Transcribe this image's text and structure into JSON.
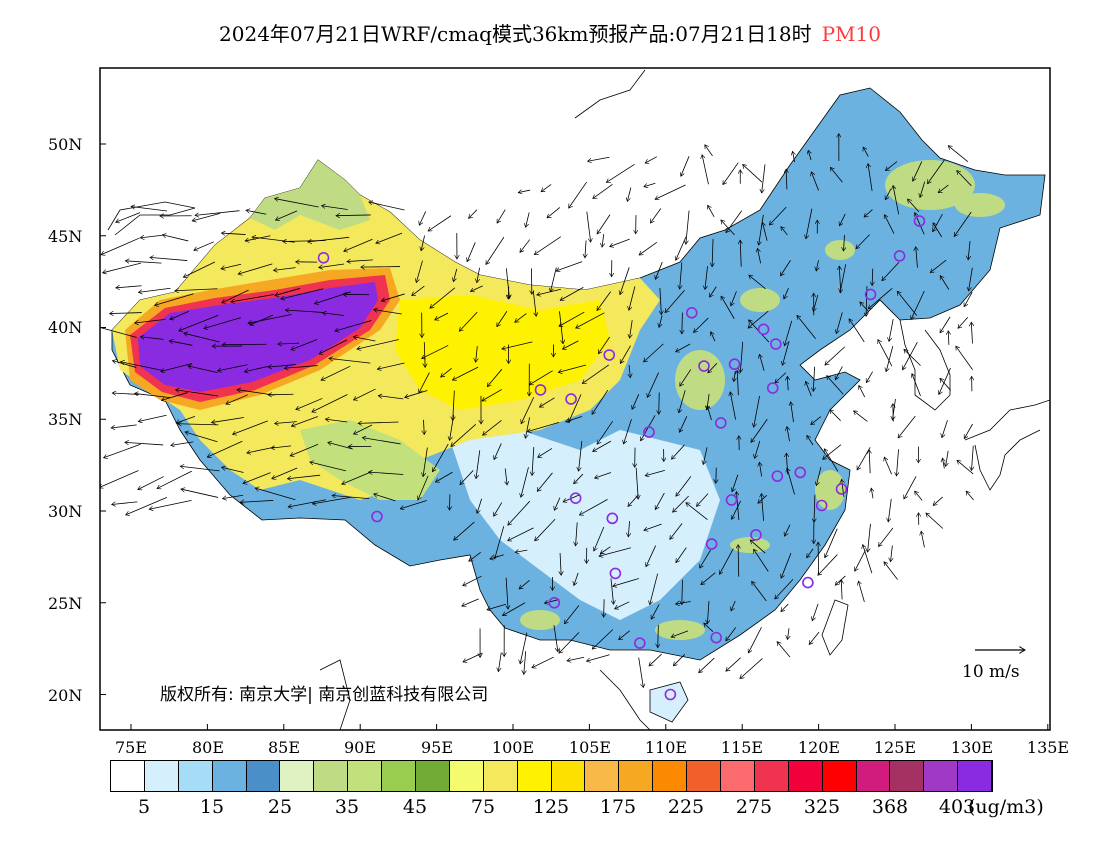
{
  "title": {
    "main": "2024年07月21日WRF/cmaq模式36km预报产品:07月21日18时",
    "pollutant": "PM10",
    "pollutant_color": "#ff3b3b"
  },
  "axes": {
    "lat_labels": [
      "50N",
      "45N",
      "40N",
      "35N",
      "30N",
      "25N",
      "20N"
    ],
    "lon_labels": [
      "75E",
      "80E",
      "85E",
      "90E",
      "95E",
      "100E",
      "105E",
      "110E",
      "115E",
      "120E",
      "125E",
      "130E",
      "135E"
    ]
  },
  "copyright": "版权所有: 南京大学| 南京创蓝科技有限公司",
  "wind_reference": "10 m/s",
  "colorbar": {
    "colors": [
      "#ffffff",
      "#d6effc",
      "#a6dcf6",
      "#6cb2e0",
      "#4b8fc8",
      "#dff0c1",
      "#bfdc84",
      "#c2e17d",
      "#98cd50",
      "#73ab37",
      "#f4fb6f",
      "#f4e85d",
      "#fff200",
      "#fbe000",
      "#f7b847",
      "#f6a823",
      "#fb8a00",
      "#f1602a",
      "#fb6b6d",
      "#f0334f",
      "#f2003b",
      "#ff0000",
      "#d11c7e",
      "#a53062",
      "#a03ac6",
      "#8a2be2"
    ],
    "tick_labels": [
      "5",
      "15",
      "25",
      "35",
      "45",
      "75",
      "125",
      "175",
      "225",
      "275",
      "325",
      "368",
      "403"
    ],
    "unit": "(ug/m3)"
  },
  "stations_color": "#8a2be2",
  "city_markers": [
    {
      "lon": 87.6,
      "lat": 43.8
    },
    {
      "lon": 126.6,
      "lat": 45.8
    },
    {
      "lon": 125.3,
      "lat": 43.9
    },
    {
      "lon": 123.4,
      "lat": 41.8
    },
    {
      "lon": 111.7,
      "lat": 40.8
    },
    {
      "lon": 116.4,
      "lat": 39.9
    },
    {
      "lon": 117.2,
      "lat": 39.1
    },
    {
      "lon": 114.5,
      "lat": 38.0
    },
    {
      "lon": 112.5,
      "lat": 37.9
    },
    {
      "lon": 106.3,
      "lat": 38.5
    },
    {
      "lon": 101.8,
      "lat": 36.6
    },
    {
      "lon": 103.8,
      "lat": 36.1
    },
    {
      "lon": 117.0,
      "lat": 36.7
    },
    {
      "lon": 113.6,
      "lat": 34.8
    },
    {
      "lon": 108.9,
      "lat": 34.3
    },
    {
      "lon": 118.8,
      "lat": 32.1
    },
    {
      "lon": 117.3,
      "lat": 31.9
    },
    {
      "lon": 121.5,
      "lat": 31.2
    },
    {
      "lon": 120.2,
      "lat": 30.3
    },
    {
      "lon": 114.3,
      "lat": 30.6
    },
    {
      "lon": 104.1,
      "lat": 30.7
    },
    {
      "lon": 106.5,
      "lat": 29.6
    },
    {
      "lon": 91.1,
      "lat": 29.7
    },
    {
      "lon": 115.9,
      "lat": 28.7
    },
    {
      "lon": 113.0,
      "lat": 28.2
    },
    {
      "lon": 106.7,
      "lat": 26.6
    },
    {
      "lon": 119.3,
      "lat": 26.1
    },
    {
      "lon": 102.7,
      "lat": 25.0
    },
    {
      "lon": 113.3,
      "lat": 23.1
    },
    {
      "lon": 108.3,
      "lat": 22.8
    },
    {
      "lon": 110.3,
      "lat": 20.0
    }
  ]
}
